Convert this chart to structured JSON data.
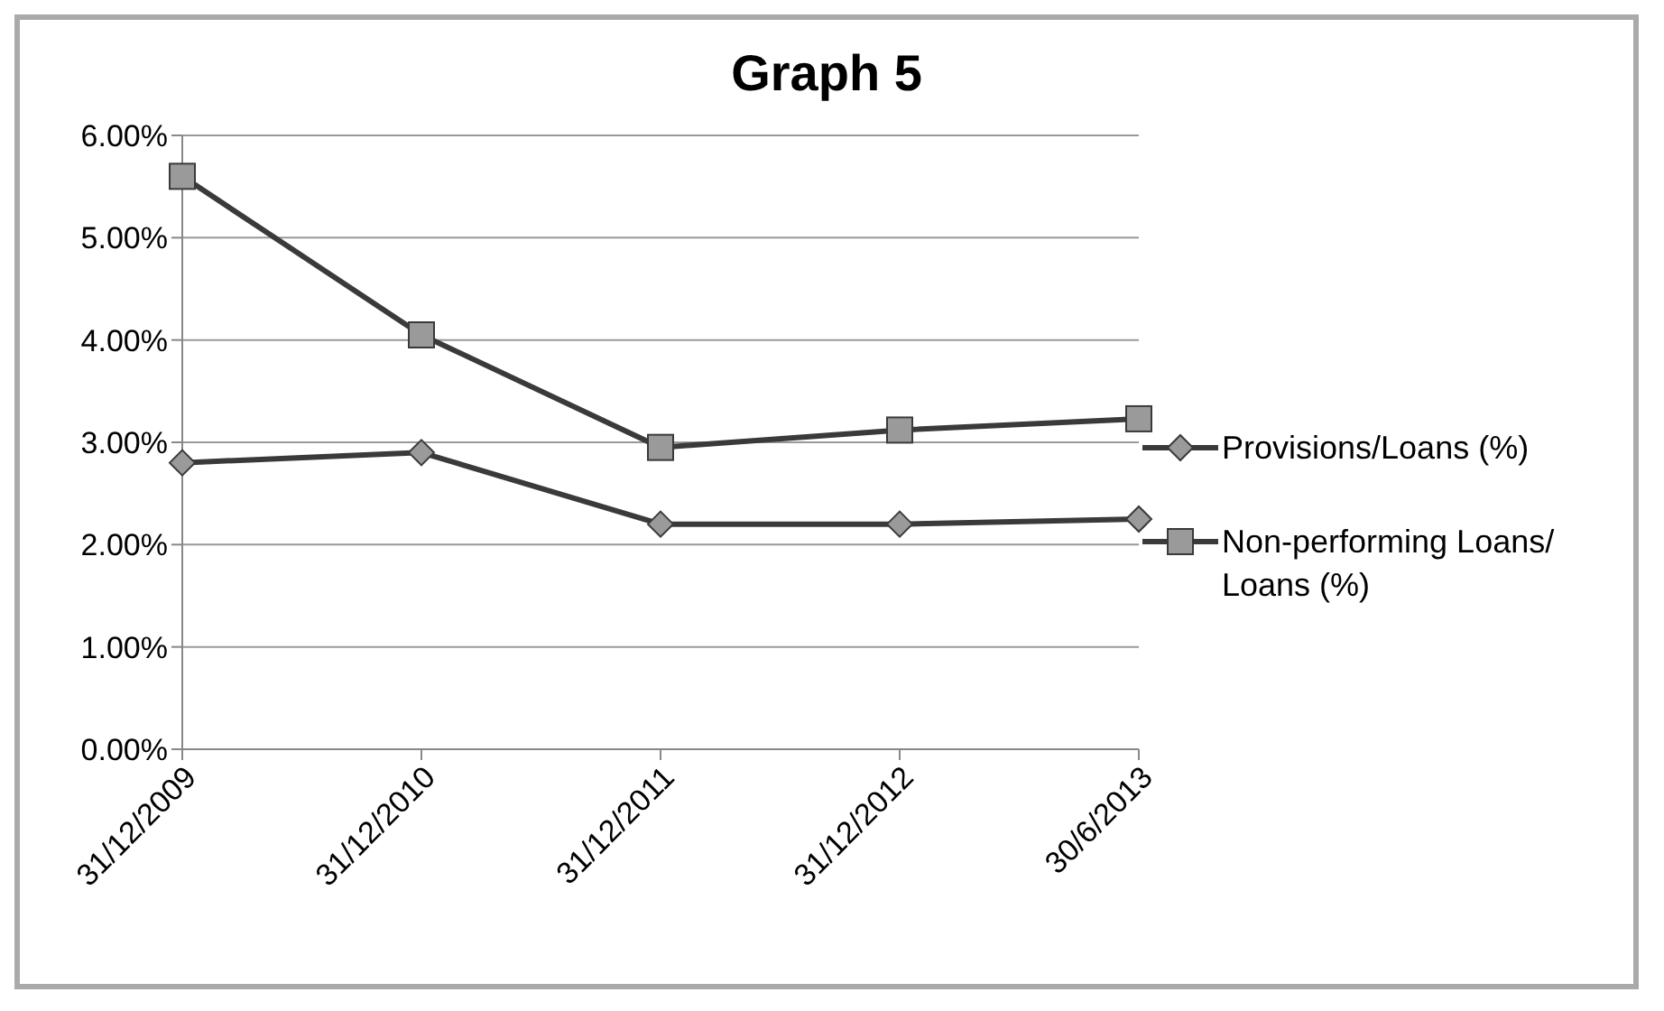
{
  "chart_data": {
    "type": "line",
    "title": "Graph 5",
    "categories": [
      "31/12/2009",
      "31/12/2010",
      "31/12/2011",
      "31/12/2012",
      "30/6/2013"
    ],
    "series": [
      {
        "name": "Provisions/Loans (%)",
        "color": "#3a3a3a",
        "marker": "diamond",
        "values": [
          2.8,
          2.9,
          2.2,
          2.2,
          2.25
        ]
      },
      {
        "name": "Non-performing Loans/ Loans (%)",
        "color": "#3a3a3a",
        "marker": "square",
        "values": [
          5.6,
          4.05,
          2.95,
          3.12,
          3.23
        ]
      }
    ],
    "ylim": [
      0,
      6
    ],
    "yticks": [
      {
        "value": 0,
        "label": "0.00%"
      },
      {
        "value": 1,
        "label": "1.00%"
      },
      {
        "value": 2,
        "label": "2.00%"
      },
      {
        "value": 3,
        "label": "3.00%"
      },
      {
        "value": 4,
        "label": "4.00%"
      },
      {
        "value": 5,
        "label": "5.00%"
      },
      {
        "value": 6,
        "label": "6.00%"
      }
    ],
    "grid": "y",
    "legend": "right",
    "line_style": "solid"
  }
}
